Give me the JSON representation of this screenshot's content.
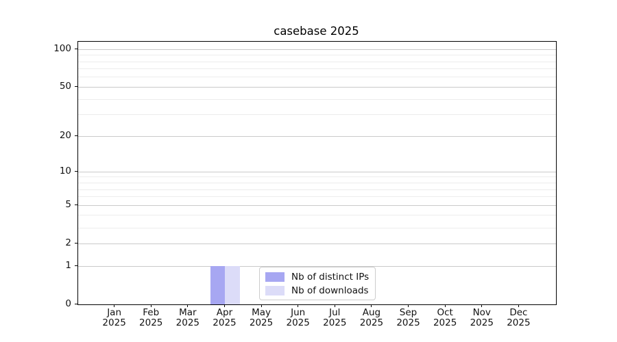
{
  "chart_data": {
    "type": "bar",
    "title": "casebase 2025",
    "categories": [
      "Jan",
      "Feb",
      "Mar",
      "Apr",
      "May",
      "Jun",
      "Jul",
      "Aug",
      "Sep",
      "Oct",
      "Nov",
      "Dec"
    ],
    "category_year": "2025",
    "series": [
      {
        "name": "Nb of distinct IPs",
        "color": "#a7a7f2",
        "values": [
          0,
          0,
          0,
          1,
          0,
          0,
          0,
          0,
          0,
          0,
          0,
          0
        ]
      },
      {
        "name": "Nb of downloads",
        "color": "#dcdcf8",
        "values": [
          0,
          0,
          0,
          1,
          0,
          0,
          0,
          0,
          0,
          0,
          0,
          0
        ]
      }
    ],
    "xlabel": "",
    "ylabel": "",
    "y_scale": "log1p",
    "ylim": [
      0,
      115
    ],
    "y_ticks_major": [
      0,
      1,
      2,
      5,
      10,
      20,
      50,
      100
    ],
    "y_ticks_minor": [
      3,
      4,
      6,
      7,
      8,
      9,
      30,
      40,
      60,
      70,
      80,
      90
    ],
    "grid": "horizontal",
    "legend": {
      "position": "lower-center-inside"
    }
  }
}
